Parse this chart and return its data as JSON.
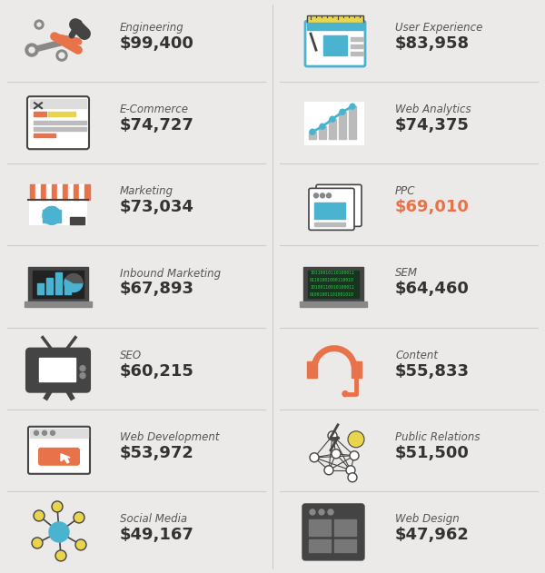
{
  "bg_color": "#eceae8",
  "salary_color": "#333333",
  "highlight_color": "#e8734a",
  "blue_color": "#4ab3d0",
  "yellow_color": "#e8d44d",
  "left_items": [
    {
      "label": "Engineering",
      "salary": "$99,400",
      "row": 0
    },
    {
      "label": "E-Commerce",
      "salary": "$74,727",
      "row": 1
    },
    {
      "label": "Marketing",
      "salary": "$73,034",
      "row": 2
    },
    {
      "label": "Inbound Marketing",
      "salary": "$67,893",
      "row": 3
    },
    {
      "label": "SEO",
      "salary": "$60,215",
      "row": 4
    },
    {
      "label": "Web Development",
      "salary": "$53,972",
      "row": 5
    },
    {
      "label": "Social Media",
      "salary": "$49,167",
      "row": 6
    }
  ],
  "right_items": [
    {
      "label": "User Experience",
      "salary": "$83,958",
      "row": 0,
      "highlight": false
    },
    {
      "label": "Web Analytics",
      "salary": "$74,375",
      "row": 1,
      "highlight": false
    },
    {
      "label": "PPC",
      "salary": "$69,010",
      "row": 2,
      "highlight": true
    },
    {
      "label": "SEM",
      "salary": "$64,460",
      "row": 3,
      "highlight": false
    },
    {
      "label": "Content",
      "salary": "$55,833",
      "row": 4,
      "highlight": false
    },
    {
      "label": "Public Relations",
      "salary": "$51,500",
      "row": 5,
      "highlight": false
    },
    {
      "label": "Web Design",
      "salary": "$47,962",
      "row": 6,
      "highlight": false
    }
  ]
}
